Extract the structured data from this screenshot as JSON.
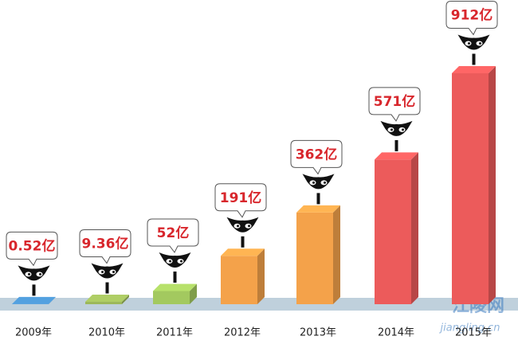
{
  "chart_data": {
    "type": "bar",
    "categories": [
      "2009年",
      "2010年",
      "2011年",
      "2012年",
      "2013年",
      "2014年",
      "2015年"
    ],
    "values": [
      0.52,
      9.36,
      52,
      191,
      362,
      571,
      912
    ],
    "value_labels": [
      "0.52亿",
      "9.36亿",
      "52亿",
      "191亿",
      "362亿",
      "571亿",
      "912亿"
    ],
    "colors": [
      "#4a90c8",
      "#9cb85a",
      "#a3c95f",
      "#f4a24a",
      "#f4a24a",
      "#ec5b5b",
      "#ec5b5b"
    ],
    "watermark": [
      "江陵网",
      "jiangling.cn"
    ]
  }
}
